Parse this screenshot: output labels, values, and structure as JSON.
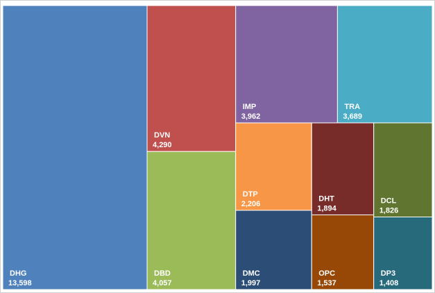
{
  "chart_data": {
    "type": "treemap",
    "categories": [
      "DHG",
      "DVN",
      "DBD",
      "IMP",
      "TRA",
      "DTP",
      "DMC",
      "DHT",
      "DCL",
      "OPC",
      "DP3"
    ],
    "values": [
      13598,
      4290,
      4057,
      3962,
      3689,
      2206,
      1997,
      1894,
      1826,
      1537,
      1408
    ],
    "value_labels": [
      "13,598",
      "4,290",
      "4,057",
      "3,962",
      "3,689",
      "2,206",
      "1,997",
      "1,894",
      "1,826",
      "1,537",
      "1,408"
    ],
    "colors": [
      "#4f81bd",
      "#c0504d",
      "#9bbb59",
      "#8064a2",
      "#4bacc6",
      "#f79646",
      "#2c4d75",
      "#772c2a",
      "#5f7530",
      "#974806",
      "#276a7c"
    ]
  }
}
